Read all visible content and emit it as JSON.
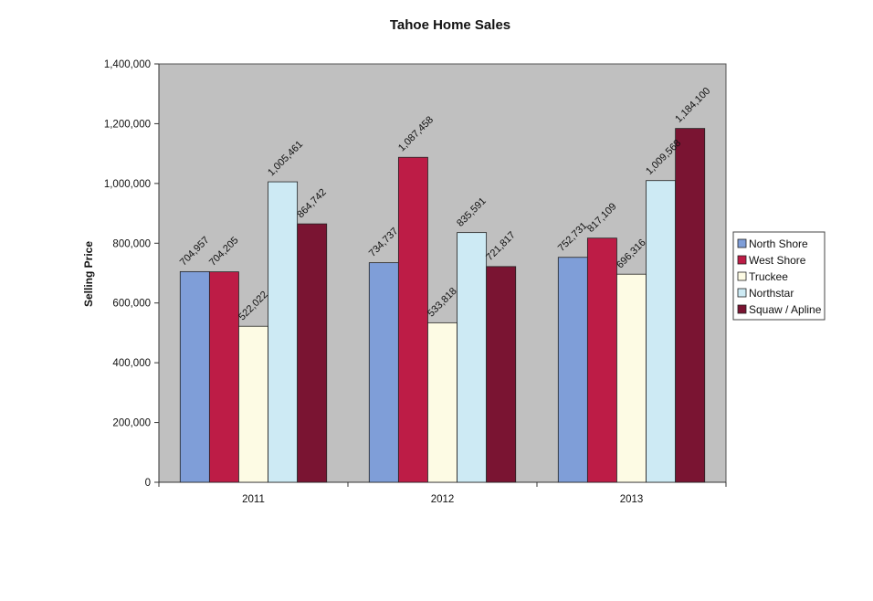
{
  "chart_data": {
    "type": "bar",
    "title": "Tahoe Home Sales",
    "xlabel": "",
    "ylabel": "Selling Price",
    "categories": [
      "2011",
      "2012",
      "2013"
    ],
    "ylim": [
      0,
      1400000
    ],
    "yticks": [
      0,
      200000,
      400000,
      600000,
      800000,
      1000000,
      1200000,
      1400000
    ],
    "ytick_labels": [
      "0",
      "200,000",
      "400,000",
      "600,000",
      "800,000",
      "1,000,000",
      "1,200,000",
      "1,400,000"
    ],
    "grid": false,
    "legend_position": "right",
    "plot_background": "#c0c0c0",
    "series": [
      {
        "name": "North Shore",
        "color": "#7f9ed8",
        "values": [
          704957,
          734737,
          752731
        ],
        "labels": [
          "704,957",
          "734,737",
          "752,731"
        ]
      },
      {
        "name": "West Shore",
        "color": "#bd1c46",
        "values": [
          704205,
          1087458,
          817109
        ],
        "labels": [
          "704,205",
          "1,087,458",
          "817,109"
        ]
      },
      {
        "name": "Truckee",
        "color": "#fdfbe4",
        "values": [
          522022,
          533818,
          696316
        ],
        "labels": [
          "522,022",
          "533,818",
          "696,316"
        ]
      },
      {
        "name": "Northstar",
        "color": "#cdeaf4",
        "values": [
          1005461,
          835591,
          1009568
        ],
        "labels": [
          "1,005,461",
          "835,591",
          "1,009,568"
        ]
      },
      {
        "name": "Squaw / Apline",
        "color": "#7a1432",
        "values": [
          864742,
          721817,
          1184100
        ],
        "labels": [
          "864,742",
          "721,817",
          "1,184,100"
        ]
      }
    ]
  }
}
